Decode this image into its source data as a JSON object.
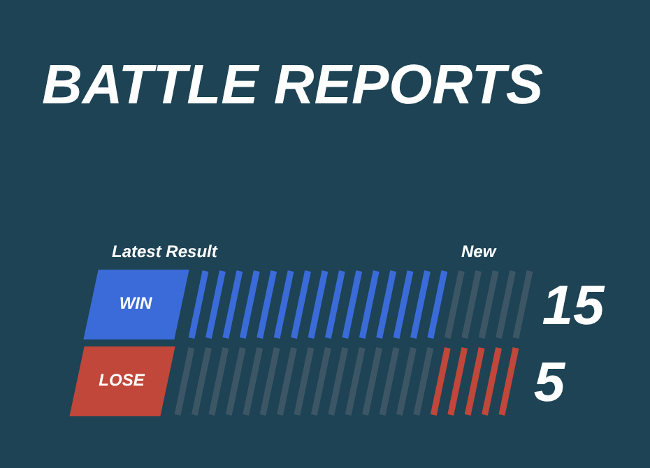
{
  "chart_data": {
    "type": "other",
    "title": "BATTLE REPORTS",
    "categories": [
      "WIN",
      "LOSE"
    ],
    "values": [
      15,
      5
    ],
    "data_labels": true,
    "colors": [
      "#3b6bd8",
      "#c0473a"
    ],
    "annotations": [
      "Latest Result",
      "New"
    ]
  }
}
